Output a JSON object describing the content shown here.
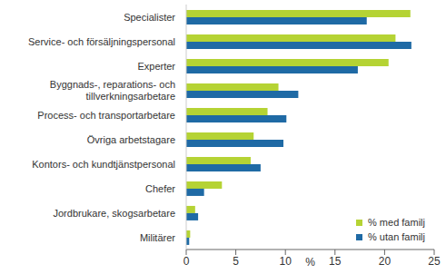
{
  "chart_data": {
    "type": "bar",
    "orientation": "horizontal",
    "categories": [
      "Specialister",
      "Service- och försäljningspersonal",
      "Experter",
      "Byggnads-, reparations- och tillverkningsarbetare",
      "Process- och transportarbetare",
      "Övriga arbetstagare",
      "Kontors- och kundtjänstpersonal",
      "Chefer",
      "Jordbrukare, skogsarbetare",
      "Militärer"
    ],
    "series": [
      {
        "name": "% med familj",
        "color": "#b5d334",
        "values": [
          22.6,
          21.1,
          20.4,
          9.3,
          8.2,
          6.8,
          6.5,
          3.6,
          0.9,
          0.4
        ]
      },
      {
        "name": "% utan familj",
        "color": "#1f6aa5",
        "values": [
          18.2,
          22.7,
          17.3,
          11.3,
          10.1,
          9.8,
          7.5,
          1.8,
          1.2,
          0.3
        ]
      }
    ],
    "xlabel": "%",
    "xlim": [
      0,
      25
    ],
    "xticks": [
      0,
      5,
      10,
      15,
      20,
      25
    ],
    "grid": false,
    "legend": "lower right"
  }
}
